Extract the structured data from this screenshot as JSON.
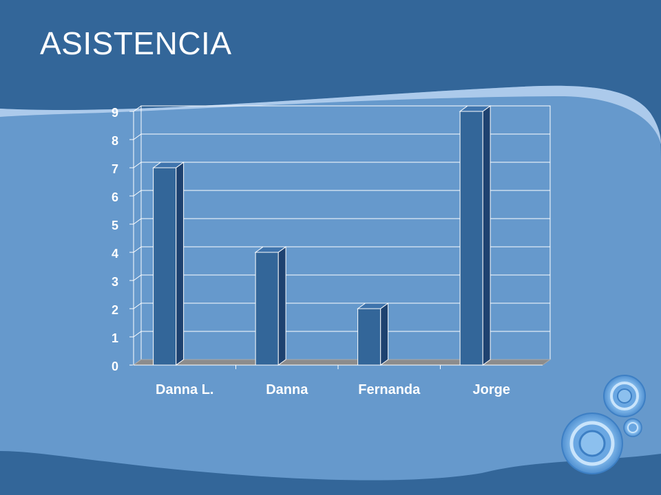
{
  "slide": {
    "title": "ASISTENCIA"
  },
  "colors": {
    "header_bg": "#336699",
    "body_bg": "#6699cc",
    "wave_highlight": "#b4cfee",
    "bar_front": "#336699",
    "bar_top": "#3f74ad",
    "bar_side": "#1e4270",
    "floor": "#8c8c8c",
    "grid": "#ffffff",
    "text": "#ffffff"
  },
  "chart_data": {
    "type": "bar",
    "categories": [
      "Danna L.",
      "Danna",
      "Fernanda",
      "Jorge"
    ],
    "values": [
      7,
      4,
      2,
      9
    ],
    "title": "",
    "xlabel": "",
    "ylabel": "",
    "ylim": [
      0,
      9
    ],
    "yticks": [
      0,
      1,
      2,
      3,
      4,
      5,
      6,
      7,
      8,
      9
    ],
    "grid": true,
    "legend": "none",
    "style": "3d-column"
  },
  "decorations": {
    "icon": "concentric-rings-icon"
  }
}
